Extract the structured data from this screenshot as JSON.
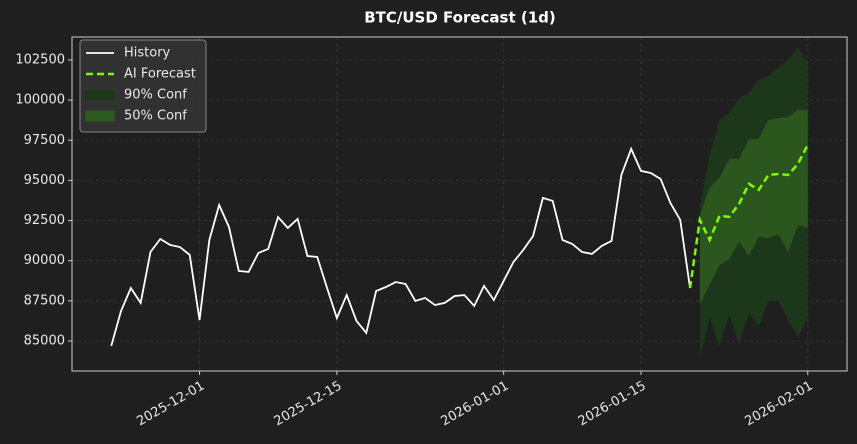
{
  "chart_data": {
    "type": "line",
    "title": "BTC/USD Forecast (1d)",
    "legend": "upper left",
    "grid": true,
    "xlim": [
      "2025-11-18",
      "2026-02-05"
    ],
    "ylim": [
      83130,
      103930
    ],
    "xticks": [
      "2025-12-01",
      "2025-12-15",
      "2026-01-01",
      "2026-01-15",
      "2026-02-01"
    ],
    "yticks": [
      85000,
      87500,
      90000,
      92500,
      95000,
      97500,
      100000,
      102500
    ],
    "series": [
      {
        "name": "History",
        "color": "#ffffff",
        "style": "solid",
        "x": [
          "2025-11-22",
          "2025-11-23",
          "2025-11-24",
          "2025-11-25",
          "2025-11-26",
          "2025-11-27",
          "2025-11-28",
          "2025-11-29",
          "2025-11-30",
          "2025-12-01",
          "2025-12-02",
          "2025-12-03",
          "2025-12-04",
          "2025-12-05",
          "2025-12-06",
          "2025-12-07",
          "2025-12-08",
          "2025-12-09",
          "2025-12-10",
          "2025-12-11",
          "2025-12-12",
          "2025-12-13",
          "2025-12-14",
          "2025-12-15",
          "2025-12-16",
          "2025-12-17",
          "2025-12-18",
          "2025-12-19",
          "2025-12-20",
          "2025-12-21",
          "2025-12-22",
          "2025-12-23",
          "2025-12-24",
          "2025-12-25",
          "2025-12-26",
          "2025-12-27",
          "2025-12-28",
          "2025-12-29",
          "2025-12-30",
          "2025-12-31",
          "2026-01-01",
          "2026-01-02",
          "2026-01-03",
          "2026-01-04",
          "2026-01-05",
          "2026-01-06",
          "2026-01-07",
          "2026-01-08",
          "2026-01-09",
          "2026-01-10",
          "2026-01-11",
          "2026-01-12",
          "2026-01-13",
          "2026-01-14",
          "2026-01-15",
          "2026-01-16",
          "2026-01-17",
          "2026-01-18",
          "2026-01-19",
          "2026-01-20"
        ],
        "values": [
          84690,
          86870,
          88300,
          87370,
          90540,
          91350,
          90980,
          90850,
          90360,
          86310,
          91290,
          93470,
          92100,
          89360,
          89300,
          90480,
          90730,
          92720,
          92040,
          92600,
          90290,
          90230,
          88300,
          86430,
          87860,
          86250,
          85500,
          88110,
          88360,
          88670,
          88550,
          87490,
          87680,
          87240,
          87370,
          87800,
          87860,
          87180,
          88430,
          87550,
          88740,
          89920,
          90670,
          91540,
          93910,
          93720,
          91290,
          91040,
          90540,
          90420,
          90920,
          91230,
          95340,
          96960,
          95590,
          95460,
          95090,
          93590,
          92540,
          88300
        ]
      },
      {
        "name": "AI Forecast",
        "color": "#7cfc00",
        "style": "dashed",
        "x": [
          "2026-01-20",
          "2026-01-21",
          "2026-01-22",
          "2026-01-23",
          "2026-01-24",
          "2026-01-25",
          "2026-01-26",
          "2026-01-27",
          "2026-01-28",
          "2026-01-29",
          "2026-01-30",
          "2026-01-31",
          "2026-02-01"
        ],
        "values": [
          88300,
          92540,
          91290,
          92790,
          92730,
          93540,
          94790,
          94410,
          95340,
          95400,
          95340,
          96030,
          97210
        ]
      }
    ],
    "bands": [
      {
        "name": "90% Conf",
        "color": "#1c3a1a",
        "x": [
          "2026-01-21",
          "2026-01-22",
          "2026-01-23",
          "2026-01-24",
          "2026-01-25",
          "2026-01-26",
          "2026-01-27",
          "2026-01-28",
          "2026-01-29",
          "2026-01-30",
          "2026-01-31",
          "2026-02-01"
        ],
        "lower": [
          84000,
          86430,
          84690,
          86600,
          84810,
          86740,
          85930,
          87490,
          87490,
          86310,
          85250,
          86430
        ],
        "upper": [
          93350,
          96580,
          98760,
          99200,
          100130,
          100450,
          101260,
          101500,
          102060,
          102500,
          103310,
          102250
        ]
      },
      {
        "name": "50% Conf",
        "color": "#2d5a1f",
        "x": [
          "2026-01-21",
          "2026-01-22",
          "2026-01-23",
          "2026-01-24",
          "2026-01-25",
          "2026-01-26",
          "2026-01-27",
          "2026-01-28",
          "2026-01-29",
          "2026-01-30",
          "2026-01-31",
          "2026-02-01"
        ],
        "lower": [
          87300,
          88490,
          89730,
          90110,
          91170,
          90290,
          91480,
          91410,
          91660,
          90540,
          92220,
          92040
        ],
        "upper": [
          92790,
          94590,
          95150,
          96340,
          96340,
          97580,
          97580,
          98760,
          98890,
          98950,
          99390,
          99390
        ]
      }
    ]
  }
}
